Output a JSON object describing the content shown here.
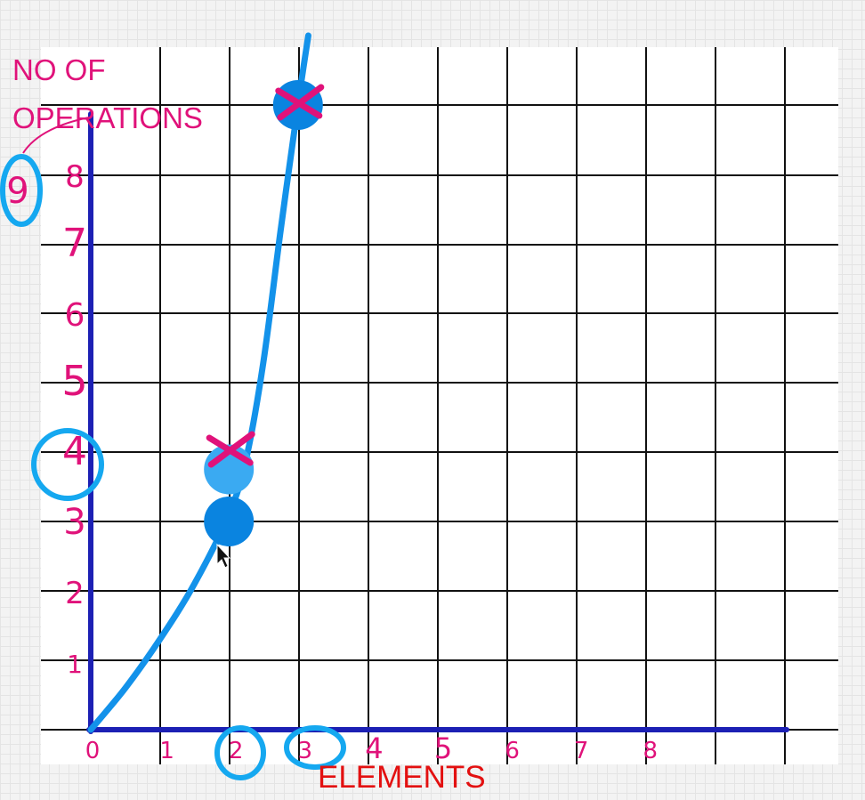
{
  "chart_data": {
    "type": "line",
    "xlabel": "ELEMENTS",
    "ylabel_line1": "NO OF",
    "ylabel_line2": "OPERATIONS",
    "x_ticks": [
      "0",
      "1",
      "2",
      "3",
      "4",
      "5",
      "6",
      "7",
      "8"
    ],
    "y_ticks": [
      "1",
      "2",
      "3",
      "4",
      "5",
      "6",
      "7",
      "8"
    ],
    "extra_y_label": "9",
    "xlim": [
      0,
      10
    ],
    "ylim": [
      0,
      9
    ],
    "grid": true,
    "series": [
      {
        "x": [
          0,
          0.5,
          1,
          1.5,
          2,
          2.25,
          2.5,
          2.75,
          3,
          3.15
        ],
        "y": [
          0,
          0.6,
          1.3,
          2.1,
          3.1,
          3.9,
          5.3,
          7.2,
          9.0,
          10.0
        ]
      }
    ],
    "points": [
      {
        "x": 2,
        "y": 3,
        "color": "#0a84e0"
      },
      {
        "x": 2,
        "y": 3.75,
        "color": "#3aaaf2"
      },
      {
        "x": 3,
        "y": 9,
        "color": "#0a84e0"
      }
    ],
    "cross_marks": [
      {
        "x": 2,
        "y": 4
      },
      {
        "x": 3,
        "y": 9
      }
    ],
    "circled_labels": [
      "4",
      "2",
      "3",
      "9"
    ],
    "colors": {
      "axis": "#1c20b4",
      "curve": "#1392ea",
      "ink": "#e0127a",
      "circle": "#15a8f0",
      "grid": "#111111"
    }
  }
}
